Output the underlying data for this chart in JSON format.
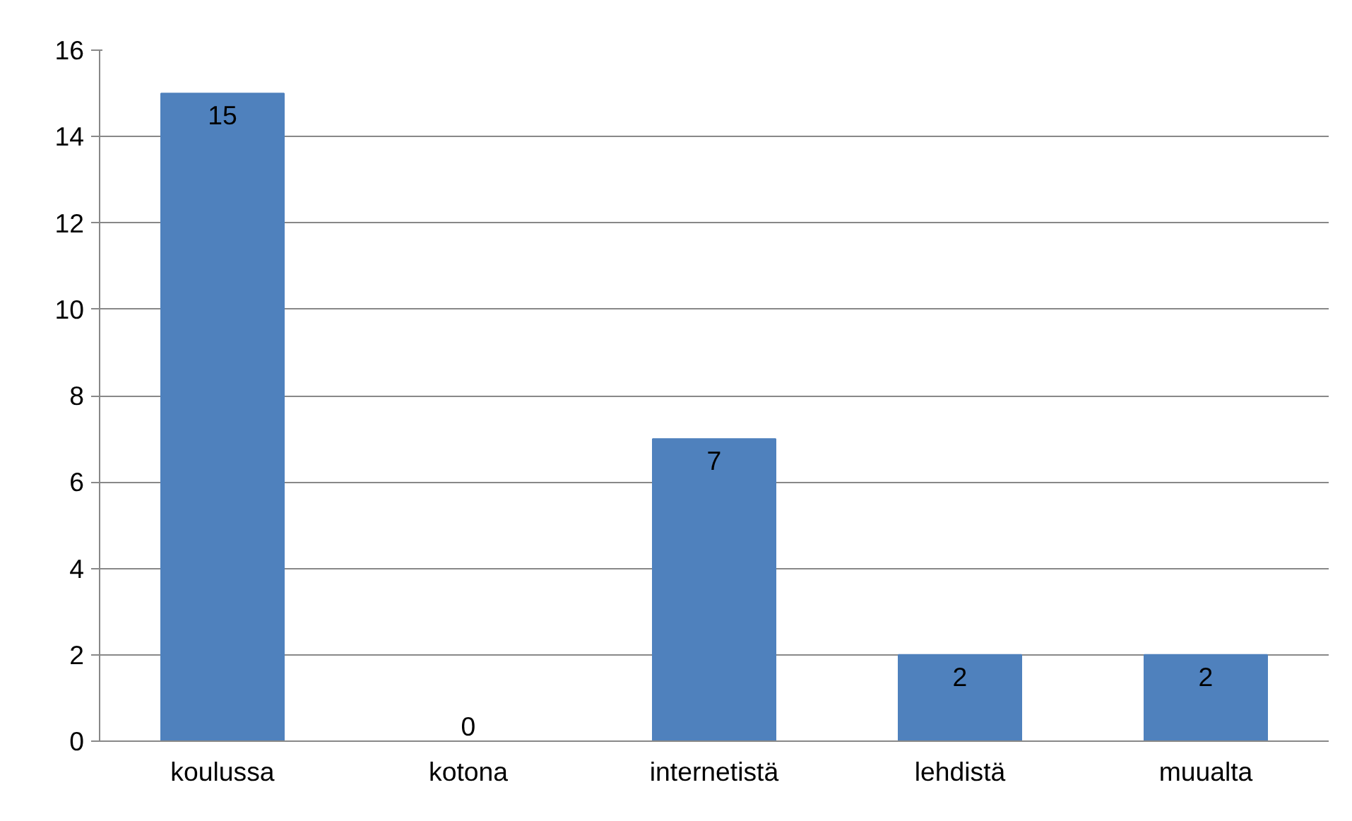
{
  "chart_data": {
    "type": "bar",
    "categories": [
      "koulussa",
      "kotona",
      "internetistä",
      "lehdistä",
      "muualta"
    ],
    "values": [
      15,
      0,
      7,
      2,
      2
    ],
    "color": "#4f81bd",
    "ylim": [
      0,
      16
    ],
    "yticks": [
      0,
      2,
      4,
      6,
      8,
      10,
      12,
      14,
      16
    ],
    "grid": "y",
    "data_labels": true
  }
}
